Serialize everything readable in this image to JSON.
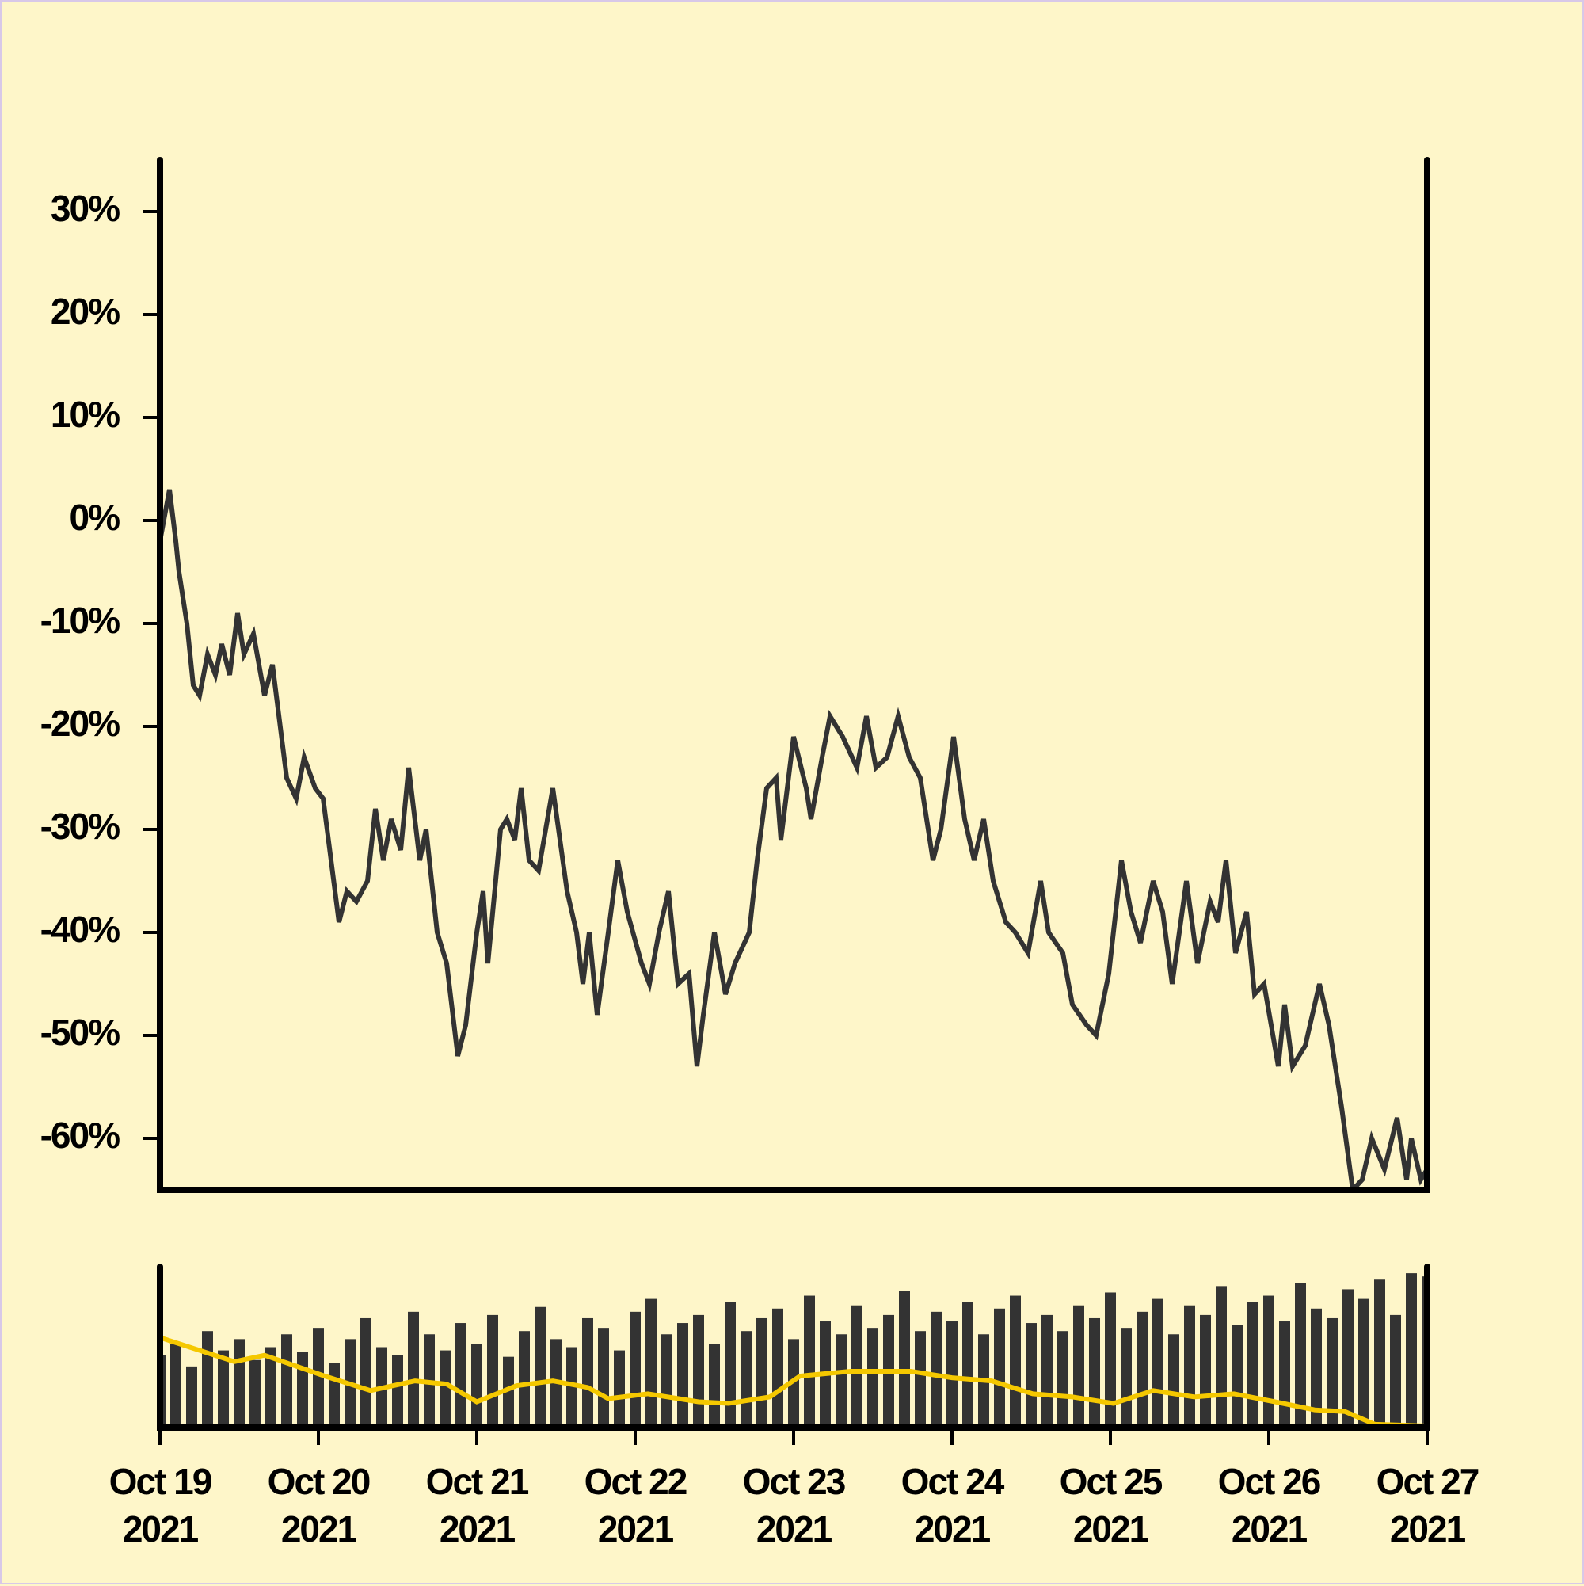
{
  "chart_data": [
    {
      "type": "line",
      "color": "#333333",
      "xlim": [
        0,
        8
      ],
      "ylim": [
        -65,
        35
      ],
      "yticks": [
        {
          "value": -60,
          "label": "-60%"
        },
        {
          "value": -50,
          "label": "-50%"
        },
        {
          "value": -40,
          "label": "-40%"
        },
        {
          "value": -30,
          "label": "-30%"
        },
        {
          "value": -20,
          "label": "-20%"
        },
        {
          "value": -10,
          "label": "-10%"
        },
        {
          "value": 0,
          "label": "0%"
        },
        {
          "value": 10,
          "label": "10%"
        },
        {
          "value": 20,
          "label": "20%"
        },
        {
          "value": 30,
          "label": "30%"
        }
      ],
      "x": [
        0,
        0.06,
        0.1,
        0.12,
        0.17,
        0.21,
        0.25,
        0.3,
        0.35,
        0.39,
        0.44,
        0.49,
        0.53,
        0.59,
        0.66,
        0.71,
        0.8,
        0.86,
        0.91,
        0.98,
        1.03,
        1.13,
        1.18,
        1.24,
        1.31,
        1.36,
        1.41,
        1.46,
        1.52,
        1.57,
        1.64,
        1.68,
        1.75,
        1.81,
        1.88,
        1.93,
        2.0,
        2.04,
        2.07,
        2.15,
        2.19,
        2.24,
        2.28,
        2.33,
        2.39,
        2.48,
        2.57,
        2.63,
        2.67,
        2.71,
        2.76,
        2.83,
        2.89,
        2.95,
        3.04,
        3.09,
        3.15,
        3.21,
        3.27,
        3.34,
        3.39,
        3.43,
        3.5,
        3.57,
        3.63,
        3.72,
        3.77,
        3.83,
        3.89,
        3.92,
        4.0,
        4.08,
        4.11,
        4.18,
        4.23,
        4.31,
        4.4,
        4.46,
        4.52,
        4.59,
        4.66,
        4.73,
        4.8,
        4.88,
        4.93,
        5.01,
        5.08,
        5.14,
        5.2,
        5.26,
        5.34,
        5.4,
        5.48,
        5.56,
        5.61,
        5.7,
        5.76,
        5.85,
        5.91,
        5.99,
        6.07,
        6.13,
        6.19,
        6.27,
        6.33,
        6.39,
        6.48,
        6.55,
        6.63,
        6.68,
        6.73,
        6.79,
        6.86,
        6.91,
        6.97,
        7.06,
        7.1,
        7.15,
        7.23,
        7.32,
        7.38,
        7.46,
        7.53,
        7.59,
        7.65,
        7.73,
        7.81,
        7.87,
        7.9,
        7.96,
        8.0
      ],
      "values": [
        -2,
        3,
        -2,
        -5,
        -10,
        -16,
        -17,
        -13,
        -15,
        -12,
        -15,
        -9,
        -13,
        -11,
        -17,
        -14,
        -25,
        -27,
        -23,
        -26,
        -27,
        -39,
        -36,
        -37,
        -35,
        -28,
        -33,
        -29,
        -32,
        -24,
        -33,
        -30,
        -40,
        -43,
        -52,
        -49,
        -40,
        -36,
        -43,
        -30,
        -29,
        -31,
        -26,
        -33,
        -34,
        -26,
        -36,
        -40,
        -45,
        -40,
        -48,
        -40,
        -33,
        -38,
        -43,
        -45,
        -40,
        -36,
        -45,
        -44,
        -53,
        -48,
        -40,
        -46,
        -43,
        -40,
        -33,
        -26,
        -25,
        -31,
        -21,
        -26,
        -29,
        -23,
        -19,
        -21,
        -24,
        -19,
        -24,
        -23,
        -19,
        -23,
        -25,
        -33,
        -30,
        -21,
        -29,
        -33,
        -29,
        -35,
        -39,
        -40,
        -42,
        -35,
        -40,
        -42,
        -47,
        -49,
        -50,
        -44,
        -33,
        -38,
        -41,
        -35,
        -38,
        -45,
        -35,
        -43,
        -37,
        -39,
        -33,
        -42,
        -38,
        -46,
        -45,
        -53,
        -47,
        -53,
        -51,
        -45,
        -49,
        -57,
        -65,
        -64,
        -60,
        -63,
        -58,
        -64,
        -60,
        -64,
        -63
      ]
    },
    {
      "type": "bar",
      "xlim": [
        0,
        8
      ],
      "ylim": [
        0,
        100
      ],
      "xticks": [
        {
          "value": 0,
          "label": "Oct 19\n2021"
        },
        {
          "value": 1,
          "label": "Oct 20\n2021"
        },
        {
          "value": 2,
          "label": "Oct 21\n2021"
        },
        {
          "value": 3,
          "label": "Oct 22\n2021"
        },
        {
          "value": 4,
          "label": "Oct 23\n2021"
        },
        {
          "value": 5,
          "label": "Oct 24\n2021"
        },
        {
          "value": 6,
          "label": "Oct 25\n2021"
        },
        {
          "value": 7,
          "label": "Oct 26\n2021"
        },
        {
          "value": 8,
          "label": "Oct 27\n2021"
        }
      ],
      "series": [
        {
          "type": "bar",
          "color": "#333333",
          "x": [
            0,
            0.1,
            0.2,
            0.3,
            0.4,
            0.5,
            0.6,
            0.7,
            0.8,
            0.9,
            1,
            1.1,
            1.2,
            1.3,
            1.4,
            1.5,
            1.6,
            1.7,
            1.8,
            1.9,
            2,
            2.1,
            2.2,
            2.3,
            2.4,
            2.5,
            2.6,
            2.7,
            2.8,
            2.9,
            3,
            3.1,
            3.2,
            3.3,
            3.4,
            3.5,
            3.6,
            3.7,
            3.8,
            3.9,
            4,
            4.1,
            4.2,
            4.3,
            4.4,
            4.5,
            4.6,
            4.7,
            4.8,
            4.9,
            5,
            5.1,
            5.2,
            5.3,
            5.4,
            5.5,
            5.6,
            5.7,
            5.8,
            5.9,
            6,
            6.1,
            6.2,
            6.3,
            6.4,
            6.5,
            6.6,
            6.7,
            6.8,
            6.9,
            7,
            7.1,
            7.2,
            7.3,
            7.4,
            7.5,
            7.6,
            7.7,
            7.8,
            7.9,
            8
          ],
          "values": [
            45,
            52,
            38,
            60,
            48,
            55,
            42,
            50,
            58,
            47,
            62,
            40,
            55,
            68,
            50,
            45,
            72,
            58,
            48,
            65,
            52,
            70,
            44,
            60,
            75,
            55,
            50,
            68,
            62,
            48,
            72,
            80,
            58,
            65,
            70,
            52,
            78,
            60,
            68,
            74,
            55,
            82,
            66,
            58,
            76,
            62,
            70,
            85,
            60,
            72,
            66,
            78,
            58,
            74,
            82,
            65,
            70,
            60,
            76,
            68,
            84,
            62,
            72,
            80,
            58,
            76,
            70,
            88,
            64,
            78,
            82,
            66,
            90,
            74,
            68,
            86,
            80,
            92,
            70,
            96,
            94
          ]
        },
        {
          "type": "line",
          "color": "#f5c800",
          "x": [
            0,
            0.47,
            0.66,
            1.04,
            1.33,
            1.61,
            1.81,
            2.0,
            2.25,
            2.48,
            2.7,
            2.83,
            3.08,
            3.4,
            3.59,
            3.85,
            4.04,
            4.36,
            4.74,
            5.0,
            5.25,
            5.51,
            5.76,
            6.02,
            6.27,
            6.53,
            6.78,
            7.04,
            7.29,
            7.48,
            7.67,
            8.0
          ],
          "values": [
            56,
            41,
            45,
            32,
            23,
            29,
            27,
            16,
            26,
            29,
            25,
            18,
            21,
            16,
            15,
            19,
            32,
            35,
            35,
            31,
            29,
            21,
            19,
            15,
            23,
            19,
            21,
            16,
            11,
            10,
            2,
            1
          ]
        }
      ]
    }
  ]
}
